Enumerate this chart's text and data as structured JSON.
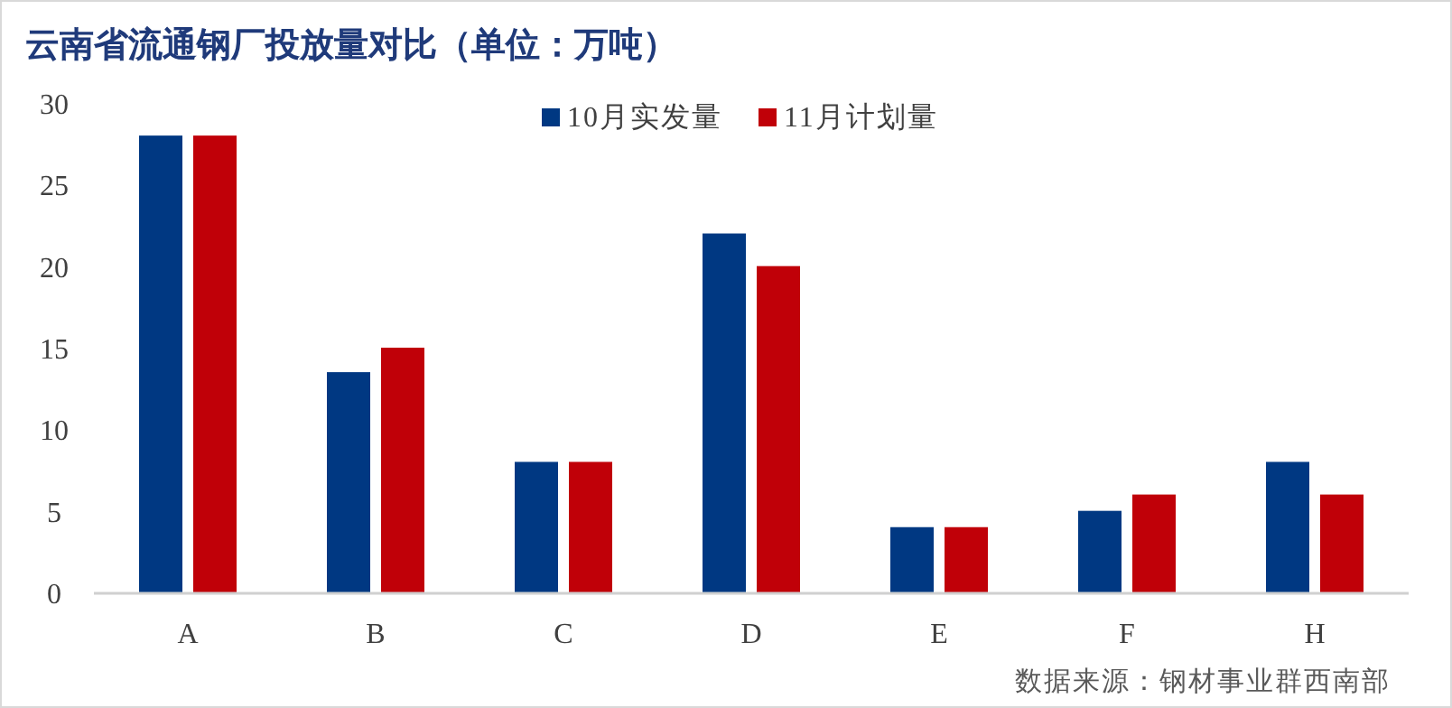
{
  "chart_data": {
    "type": "bar",
    "title": "云南省流通钢厂投放量对比（单位：万吨）",
    "categories": [
      "A",
      "B",
      "C",
      "D",
      "E",
      "F",
      "H"
    ],
    "series": [
      {
        "name": "10月实发量",
        "color": "#003882",
        "values": [
          28,
          13.5,
          8,
          22,
          4,
          5,
          8
        ]
      },
      {
        "name": "11月计划量",
        "color": "#c00008",
        "values": [
          28,
          15,
          8,
          20,
          4,
          6,
          6
        ]
      }
    ],
    "ylim": [
      0,
      30
    ],
    "yticks": [
      0,
      5,
      10,
      15,
      20,
      25,
      30
    ],
    "grid": false,
    "legend": "top",
    "annotations": [
      "数据来源：钢材事业群西南部"
    ]
  }
}
